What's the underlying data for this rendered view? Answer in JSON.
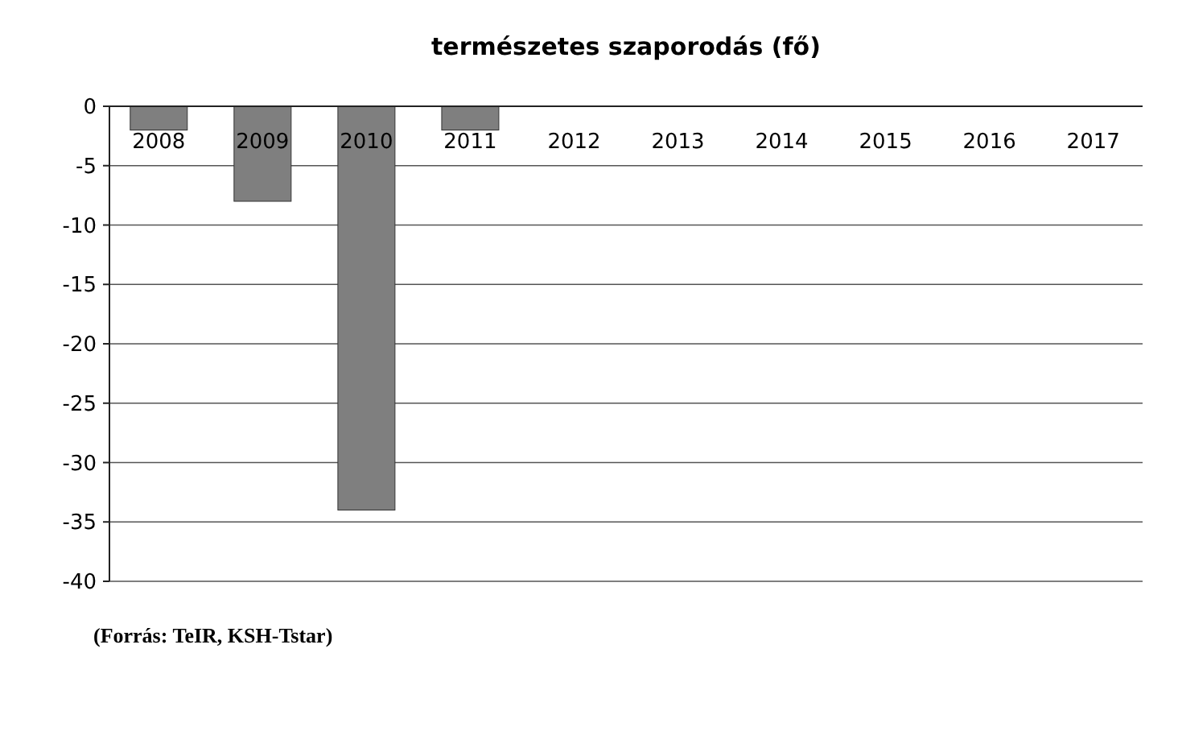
{
  "chart_data": {
    "type": "bar",
    "title": "természetes szaporodás (fő)",
    "categories": [
      "2008",
      "2009",
      "2010",
      "2011",
      "2012",
      "2013",
      "2014",
      "2015",
      "2016",
      "2017"
    ],
    "values": [
      -2,
      -8,
      -34,
      -2,
      null,
      null,
      null,
      null,
      null,
      null
    ],
    "color": "#7f7f7f",
    "ylim": [
      -40,
      0
    ],
    "yticks": [
      -40,
      -35,
      -30,
      -25,
      -20,
      -15,
      -10,
      -5,
      0
    ],
    "grid": "y",
    "annotations": [
      "(Forrás: TeIR, KSH-Tstar)"
    ]
  }
}
